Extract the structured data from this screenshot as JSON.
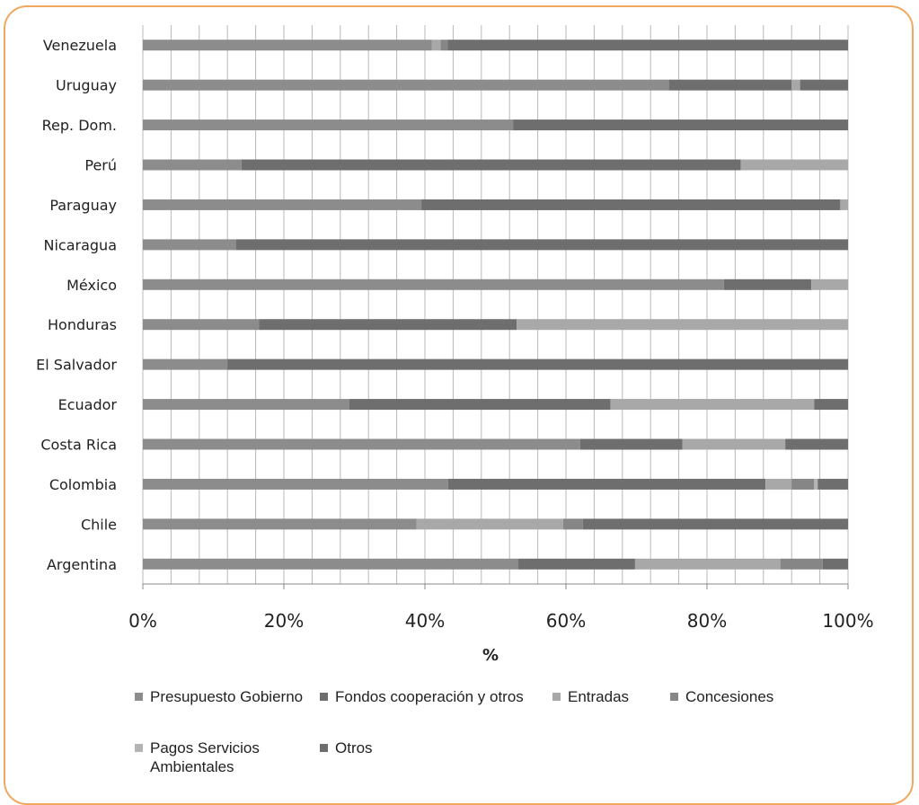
{
  "chart_data": {
    "type": "bar",
    "orientation": "horizontal",
    "stacked": "percent",
    "title": "",
    "xlabel": "%",
    "ylabel": "",
    "xlim": [
      0,
      100
    ],
    "x_ticks": [
      "0%",
      "20%",
      "40%",
      "60%",
      "80%",
      "100%"
    ],
    "grid": "vertical",
    "legend_position": "bottom",
    "categories": [
      "Venezuela",
      "Uruguay",
      "Rep. Dom.",
      "Perú",
      "Paraguay",
      "Nicaragua",
      "México",
      "Honduras",
      "El Salvador",
      "Ecuador",
      "Costa Rica",
      "Colombia",
      "Chile",
      "Argentina"
    ],
    "series": [
      {
        "name": "Presupuesto Gobierno",
        "color": "#8c8c8c",
        "values": [
          41,
          74.6,
          52.5,
          14,
          39.5,
          13.2,
          82.4,
          16.5,
          12,
          29.3,
          62,
          43.3,
          38.8,
          53.2
        ]
      },
      {
        "name": "Fondos cooperación y otros",
        "color": "#6e6e6e",
        "values": [
          0,
          17.4,
          47.5,
          70.8,
          59.4,
          86.8,
          12.4,
          36.5,
          88,
          37,
          14.5,
          45,
          0,
          16.6
        ]
      },
      {
        "name": "Entradas",
        "color": "#a8a8a8",
        "values": [
          1.2,
          1.2,
          0,
          15.2,
          1.1,
          0,
          5.2,
          47,
          0,
          28.9,
          14.6,
          3.7,
          20.8,
          20.6
        ]
      },
      {
        "name": "Concesiones",
        "color": "#868686",
        "values": [
          1,
          0,
          0,
          0,
          0,
          0,
          0,
          0,
          0,
          0,
          0,
          3.2,
          2.8,
          6
        ]
      },
      {
        "name": "Pagos Servicios Ambientales",
        "color": "#b4b4b4",
        "values": [
          0,
          0,
          0,
          0,
          0,
          0,
          0,
          0,
          0,
          0,
          0,
          0.5,
          0,
          0
        ]
      },
      {
        "name": "Otros",
        "color": "#6e6e6e",
        "values": [
          56.8,
          6.8,
          0,
          0,
          0,
          0,
          0,
          0,
          0,
          4.8,
          8.9,
          4.3,
          37.6,
          3.6
        ]
      }
    ]
  },
  "legend": {
    "items": [
      {
        "label": "Presupuesto Gobierno",
        "color": "#8c8c8c"
      },
      {
        "label": "Fondos cooperación y otros",
        "color": "#6e6e6e"
      },
      {
        "label": "Entradas",
        "color": "#a8a8a8"
      },
      {
        "label": "Concesiones",
        "color": "#868686"
      },
      {
        "label": "Pagos Servicios",
        "label2": "Ambientales",
        "color": "#b4b4b4"
      },
      {
        "label": "Otros",
        "color": "#6e6e6e"
      }
    ]
  }
}
